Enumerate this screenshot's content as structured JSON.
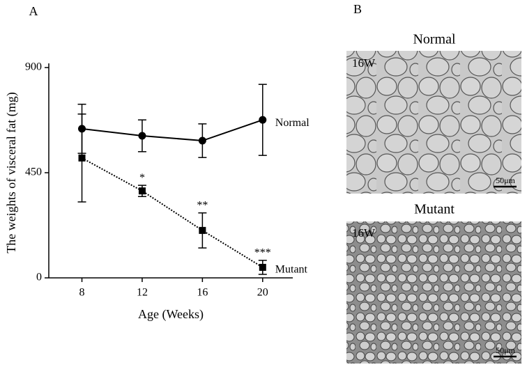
{
  "chart_data": {
    "type": "line",
    "panel_label": "A",
    "ylabel": "The weights of visceral fat (mg)",
    "xlabel": "Age (Weeks)",
    "x": [
      8,
      12,
      16,
      20
    ],
    "xlim": [
      5.8,
      22
    ],
    "xticks": [
      8,
      12,
      16,
      20
    ],
    "ylim": [
      0,
      900
    ],
    "yticks": [
      0,
      450,
      900
    ],
    "series": [
      {
        "name": "Normal",
        "color": "#000000",
        "marker": "circle",
        "dash": "solid",
        "values": [
          638,
          608,
          587,
          676
        ],
        "errors": [
          105,
          68,
          72,
          152
        ]
      },
      {
        "name": "Mutant",
        "color": "#000000",
        "marker": "square",
        "dash": "dotted",
        "values": [
          513,
          372,
          203,
          45
        ],
        "errors": [
          188,
          24,
          75,
          30
        ]
      }
    ],
    "annotations": [
      {
        "series": 1,
        "index": 1,
        "text": "*"
      },
      {
        "series": 1,
        "index": 2,
        "text": "**"
      },
      {
        "series": 1,
        "index": 3,
        "text": "***"
      }
    ]
  },
  "panel_b": {
    "label": "B",
    "images": [
      {
        "title": "Normal",
        "tag": "16W",
        "scale": "50μm"
      },
      {
        "title": "Mutant",
        "tag": "16W",
        "scale": "50μm"
      }
    ]
  }
}
